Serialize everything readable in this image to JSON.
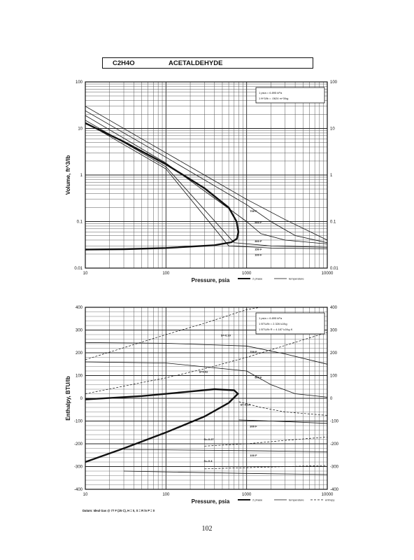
{
  "header": {
    "formula": "C2H4O",
    "compound": "ACETALDEHYDE"
  },
  "page_number": "102",
  "datum_note": "Datum: Ideal Gas @ 77 F (25 C), H = 0, S = R ln P = 0",
  "chart_data": [
    {
      "type": "line",
      "title": "",
      "xlabel": "Pressure,  psia",
      "ylabel": "Volume, ft^3/lb",
      "xscale": "log",
      "yscale": "log",
      "xlim": [
        10,
        10000
      ],
      "ylim": [
        0.01,
        100
      ],
      "x_ticks": [
        "10",
        "100",
        "1000",
        "10000"
      ],
      "y_ticks_left": [
        "100",
        "10",
        "1",
        "0.1",
        "0.01"
      ],
      "y_ticks_right": [
        "100",
        "10",
        "1",
        "0.1",
        "0.01"
      ],
      "grid": true,
      "info_box": [
        "1 psia = 6.895 kPa",
        "1 ft^3/lb = .0624 m^3/kg"
      ],
      "legend": {
        "position": "bottom-right",
        "entries": [
          "2 phase",
          "temperature"
        ]
      },
      "isotherm_labels": [
        "700 F",
        "500 F",
        "300 F",
        "150 F",
        "100 F"
      ],
      "series": [
        {
          "name": "2 phase",
          "style": "bold",
          "points": [
            [
              10,
              13
            ],
            [
              30,
              5.2
            ],
            [
              100,
              1.7
            ],
            [
              300,
              0.52
            ],
            [
              600,
              0.2
            ],
            [
              750,
              0.1
            ],
            [
              790,
              0.06
            ],
            [
              760,
              0.043
            ],
            [
              650,
              0.036
            ],
            [
              400,
              0.031
            ],
            [
              100,
              0.027
            ],
            [
              30,
              0.0255
            ],
            [
              10,
              0.025
            ]
          ]
        },
        {
          "name": "700 F",
          "style": "thin",
          "points": [
            [
              10,
              30
            ],
            [
              100,
              3.0
            ],
            [
              1000,
              0.3
            ],
            [
              3000,
              0.11
            ],
            [
              10000,
              0.04
            ]
          ]
        },
        {
          "name": "500 F",
          "style": "thin",
          "points": [
            [
              10,
              24
            ],
            [
              100,
              2.4
            ],
            [
              1000,
              0.23
            ],
            [
              2000,
              0.1
            ],
            [
              4000,
              0.05
            ],
            [
              10000,
              0.035
            ]
          ]
        },
        {
          "name": "300 F",
          "style": "thin",
          "points": [
            [
              10,
              19
            ],
            [
              100,
              1.8
            ],
            [
              1000,
              0.1
            ],
            [
              1500,
              0.055
            ],
            [
              3000,
              0.04
            ],
            [
              10000,
              0.033
            ]
          ]
        },
        {
          "name": "150 F",
          "style": "thin",
          "points": [
            [
              10,
              15
            ],
            [
              100,
              1.5
            ],
            [
              700,
              0.035
            ],
            [
              2000,
              0.03
            ],
            [
              10000,
              0.028
            ]
          ]
        },
        {
          "name": "100 F",
          "style": "thin",
          "points": [
            [
              10,
              13.5
            ],
            [
              100,
              1.35
            ],
            [
              600,
              0.03
            ],
            [
              2000,
              0.027
            ],
            [
              10000,
              0.026
            ]
          ]
        }
      ]
    },
    {
      "type": "line",
      "title": "",
      "xlabel": "Pressure,  psia",
      "ylabel": "Enthalpy, BTU/lb",
      "xscale": "log",
      "yscale": "linear",
      "xlim": [
        10,
        10000
      ],
      "ylim": [
        -400,
        400
      ],
      "x_ticks": [
        "10",
        "100",
        "1000",
        "10000"
      ],
      "y_ticks_left": [
        "400",
        "300",
        "200",
        "100",
        "0",
        "-100",
        "-200",
        "-300",
        "-400"
      ],
      "y_ticks_right": [
        "400",
        "300",
        "200",
        "100",
        "0",
        "-100",
        "-200",
        "-300",
        "-400"
      ],
      "grid": true,
      "info_box": [
        "1 psia = 6.895 kPa",
        "1 BTU/lb = 2.326 kJ/kg",
        "1 BTU/lb R = 4.187 kJ/kg K"
      ],
      "legend": {
        "position": "bottom-right",
        "entries": [
          "2 phase",
          "temperature",
          "entropy"
        ]
      },
      "isotherm_labels": [
        "700 F",
        "500 F",
        "300 F",
        "100 F"
      ],
      "entropy_labels": [
        "S=-0.10",
        "S=0.02",
        "S=-0.14",
        "S=-0.27",
        "S=-0.4"
      ],
      "series": [
        {
          "name": "2 phase",
          "style": "bold",
          "points": [
            [
              10,
              -280
            ],
            [
              30,
              -220
            ],
            [
              100,
              -150
            ],
            [
              300,
              -80
            ],
            [
              600,
              -20
            ],
            [
              780,
              20
            ],
            [
              700,
              35
            ],
            [
              400,
              40
            ],
            [
              200,
              30
            ],
            [
              50,
              10
            ],
            [
              10,
              -5
            ]
          ]
        },
        {
          "name": "700 F",
          "style": "thin",
          "points": [
            [
              10,
              245
            ],
            [
              100,
              242
            ],
            [
              1000,
              230
            ],
            [
              3000,
              195
            ],
            [
              10000,
              150
            ]
          ]
        },
        {
          "name": "500 F",
          "style": "thin",
          "points": [
            [
              10,
              160
            ],
            [
              100,
              155
            ],
            [
              1000,
              120
            ],
            [
              2000,
              60
            ],
            [
              4000,
              20
            ],
            [
              10000,
              5
            ]
          ]
        },
        {
          "name": "300 F",
          "style": "thin",
          "points": [
            [
              800,
              -95
            ],
            [
              2000,
              -100
            ],
            [
              10000,
              -110
            ]
          ]
        },
        {
          "name": "100 F",
          "style": "thin",
          "points": [
            [
              30,
              -225
            ],
            [
              1000,
              -230
            ],
            [
              10000,
              -235
            ]
          ]
        },
        {
          "name": "150 F",
          "style": "thin",
          "points": [
            [
              30,
              -320
            ],
            [
              1000,
              -330
            ],
            [
              10000,
              -335
            ]
          ]
        },
        {
          "name": "S=-0.10",
          "style": "dashed",
          "points": [
            [
              10,
              170
            ],
            [
              100,
              280
            ],
            [
              300,
              330
            ],
            [
              1000,
              390
            ],
            [
              1500,
              400
            ]
          ]
        },
        {
          "name": "S=0.02",
          "style": "dashed",
          "points": [
            [
              10,
              20
            ],
            [
              100,
              90
            ],
            [
              300,
              130
            ],
            [
              1000,
              180
            ],
            [
              10000,
              290
            ]
          ]
        },
        {
          "name": "S=-0.14",
          "style": "dashed",
          "points": [
            [
              800,
              -15
            ],
            [
              1500,
              -40
            ],
            [
              3000,
              -60
            ],
            [
              10000,
              -75
            ]
          ]
        },
        {
          "name": "S=-0.27",
          "style": "dashed",
          "points": [
            [
              300,
              -210
            ],
            [
              1000,
              -200
            ],
            [
              3000,
              -185
            ],
            [
              10000,
              -170
            ]
          ]
        },
        {
          "name": "S=-0.4",
          "style": "dashed",
          "points": [
            [
              300,
              -310
            ],
            [
              1000,
              -305
            ],
            [
              10000,
              -295
            ]
          ]
        }
      ]
    }
  ]
}
